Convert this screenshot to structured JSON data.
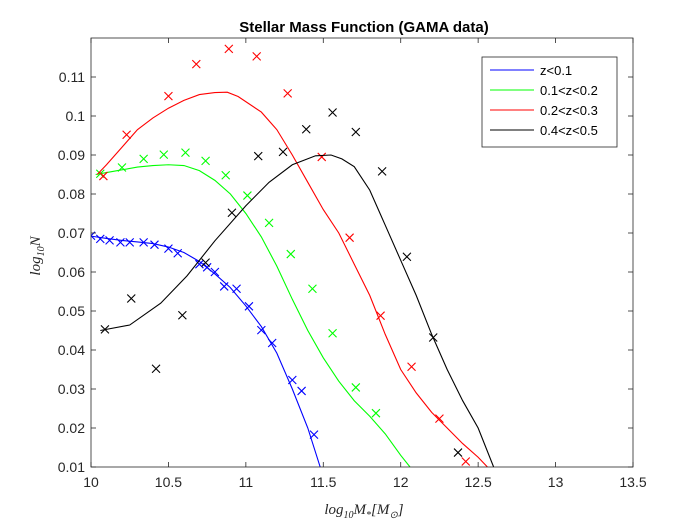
{
  "chart_data": {
    "type": "line",
    "title": "Stellar Mass Function (GAMA data)",
    "xlabel_main": "log",
    "xlabel_sub": "10",
    "xlabel_rest": "M",
    "xlabel_sub2": "*",
    "xlabel_tail": "[M",
    "xlabel_sub3": "⊙",
    "xlabel_close": "]",
    "ylabel_main": "log",
    "ylabel_sub": "10",
    "ylabel_rest": "N",
    "xlim": [
      10,
      13.5
    ],
    "ylim": [
      0.01,
      0.12
    ],
    "xticks": [
      "10",
      "10.5",
      "11",
      "11.5",
      "12",
      "12.5",
      "13",
      "13.5"
    ],
    "yticks": [
      "0.01",
      "0.02",
      "0.03",
      "0.04",
      "0.05",
      "0.06",
      "0.07",
      "0.08",
      "0.09",
      "0.1",
      "0.11"
    ],
    "legend_position": "top-right",
    "grid": false,
    "series": [
      {
        "name": "z<0.1",
        "color": "#0000ff",
        "line": [
          [
            10.0,
            0.0692
          ],
          [
            10.1,
            0.0686
          ],
          [
            10.2,
            0.0681
          ],
          [
            10.3,
            0.0677
          ],
          [
            10.4,
            0.0673
          ],
          [
            10.5,
            0.0664
          ],
          [
            10.6,
            0.065
          ],
          [
            10.7,
            0.0627
          ],
          [
            10.8,
            0.0595
          ],
          [
            10.9,
            0.056
          ],
          [
            11.0,
            0.0513
          ],
          [
            11.1,
            0.046
          ],
          [
            11.2,
            0.0392
          ],
          [
            11.3,
            0.03
          ],
          [
            11.4,
            0.02
          ],
          [
            11.48,
            0.01
          ]
        ],
        "points": [
          [
            10.0,
            0.0693
          ],
          [
            10.06,
            0.0685
          ],
          [
            10.12,
            0.0681
          ],
          [
            10.19,
            0.0676
          ],
          [
            10.25,
            0.0676
          ],
          [
            10.34,
            0.0676
          ],
          [
            10.41,
            0.067
          ],
          [
            10.5,
            0.066
          ],
          [
            10.56,
            0.0648
          ],
          [
            10.7,
            0.062
          ],
          [
            10.75,
            0.0612
          ],
          [
            10.8,
            0.06
          ],
          [
            10.86,
            0.0563
          ],
          [
            10.94,
            0.0557
          ],
          [
            11.02,
            0.0512
          ],
          [
            11.1,
            0.0451
          ],
          [
            11.17,
            0.0418
          ],
          [
            11.3,
            0.0323
          ],
          [
            11.36,
            0.0295
          ],
          [
            11.44,
            0.0183
          ]
        ]
      },
      {
        "name": "0.1<z<0.2",
        "color": "#00ff00",
        "line": [
          [
            10.03,
            0.085
          ],
          [
            10.1,
            0.0855
          ],
          [
            10.2,
            0.0862
          ],
          [
            10.3,
            0.0869
          ],
          [
            10.4,
            0.0873
          ],
          [
            10.5,
            0.0875
          ],
          [
            10.6,
            0.0873
          ],
          [
            10.7,
            0.086
          ],
          [
            10.8,
            0.0835
          ],
          [
            10.9,
            0.08
          ],
          [
            11.0,
            0.075
          ],
          [
            11.1,
            0.069
          ],
          [
            11.2,
            0.0615
          ],
          [
            11.3,
            0.053
          ],
          [
            11.4,
            0.045
          ],
          [
            11.5,
            0.038
          ],
          [
            11.6,
            0.032
          ],
          [
            11.7,
            0.027
          ],
          [
            11.8,
            0.023
          ],
          [
            11.9,
            0.0185
          ],
          [
            12.0,
            0.013
          ],
          [
            12.06,
            0.01
          ]
        ],
        "points": [
          [
            10.06,
            0.0852
          ],
          [
            10.2,
            0.0868
          ],
          [
            10.34,
            0.089
          ],
          [
            10.47,
            0.0901
          ],
          [
            10.61,
            0.0906
          ],
          [
            10.74,
            0.0885
          ],
          [
            10.87,
            0.0848
          ],
          [
            11.01,
            0.0796
          ],
          [
            11.15,
            0.0726
          ],
          [
            11.29,
            0.0646
          ],
          [
            11.43,
            0.0557
          ],
          [
            11.56,
            0.0443
          ],
          [
            11.71,
            0.0304
          ],
          [
            11.84,
            0.0238
          ]
        ]
      },
      {
        "name": "0.2<z<0.3",
        "color": "#ff0000",
        "line": [
          [
            10.04,
            0.085
          ],
          [
            10.1,
            0.0875
          ],
          [
            10.2,
            0.092
          ],
          [
            10.3,
            0.0965
          ],
          [
            10.4,
            0.0995
          ],
          [
            10.5,
            0.102
          ],
          [
            10.6,
            0.104
          ],
          [
            10.7,
            0.1055
          ],
          [
            10.8,
            0.106
          ],
          [
            10.88,
            0.1061
          ],
          [
            10.95,
            0.105
          ],
          [
            11.1,
            0.101
          ],
          [
            11.2,
            0.0965
          ],
          [
            11.3,
            0.09
          ],
          [
            11.4,
            0.083
          ],
          [
            11.5,
            0.076
          ],
          [
            11.6,
            0.07
          ],
          [
            11.7,
            0.062
          ],
          [
            11.8,
            0.054
          ],
          [
            11.9,
            0.044
          ],
          [
            12.0,
            0.035
          ],
          [
            12.1,
            0.029
          ],
          [
            12.2,
            0.024
          ],
          [
            12.3,
            0.02
          ],
          [
            12.4,
            0.016
          ],
          [
            12.5,
            0.0125
          ],
          [
            12.56,
            0.01
          ]
        ],
        "points": [
          [
            10.08,
            0.0846
          ],
          [
            10.23,
            0.0952
          ],
          [
            10.5,
            0.1051
          ],
          [
            10.68,
            0.1133
          ],
          [
            10.89,
            0.1172
          ],
          [
            11.07,
            0.1153
          ],
          [
            11.27,
            0.1058
          ],
          [
            11.49,
            0.0895
          ],
          [
            11.67,
            0.0688
          ],
          [
            11.87,
            0.0488
          ],
          [
            12.07,
            0.0357
          ],
          [
            12.25,
            0.0224
          ],
          [
            12.42,
            0.0114
          ]
        ]
      },
      {
        "name": "0.4<z<0.5",
        "color": "#000000",
        "line": [
          [
            10.06,
            0.045
          ],
          [
            10.25,
            0.0464
          ],
          [
            10.45,
            0.052
          ],
          [
            10.62,
            0.059
          ],
          [
            10.8,
            0.068
          ],
          [
            11.0,
            0.077
          ],
          [
            11.15,
            0.083
          ],
          [
            11.3,
            0.0875
          ],
          [
            11.45,
            0.0898
          ],
          [
            11.55,
            0.09
          ],
          [
            11.62,
            0.089
          ],
          [
            11.7,
            0.087
          ],
          [
            11.8,
            0.081
          ],
          [
            11.9,
            0.072
          ],
          [
            12.0,
            0.063
          ],
          [
            12.1,
            0.054
          ],
          [
            12.2,
            0.044
          ],
          [
            12.3,
            0.035
          ],
          [
            12.4,
            0.027
          ],
          [
            12.5,
            0.02
          ],
          [
            12.6,
            0.01
          ]
        ],
        "points": [
          [
            10.09,
            0.0453
          ],
          [
            10.26,
            0.0532
          ],
          [
            10.42,
            0.0352
          ],
          [
            10.59,
            0.0489
          ],
          [
            10.74,
            0.0624
          ],
          [
            10.91,
            0.0752
          ],
          [
            11.08,
            0.0897
          ],
          [
            11.24,
            0.0908
          ],
          [
            11.39,
            0.0966
          ],
          [
            11.56,
            0.1009
          ],
          [
            11.71,
            0.0959
          ],
          [
            11.88,
            0.0858
          ],
          [
            12.04,
            0.0639
          ],
          [
            12.21,
            0.0432
          ],
          [
            12.37,
            0.0137
          ]
        ]
      }
    ]
  }
}
